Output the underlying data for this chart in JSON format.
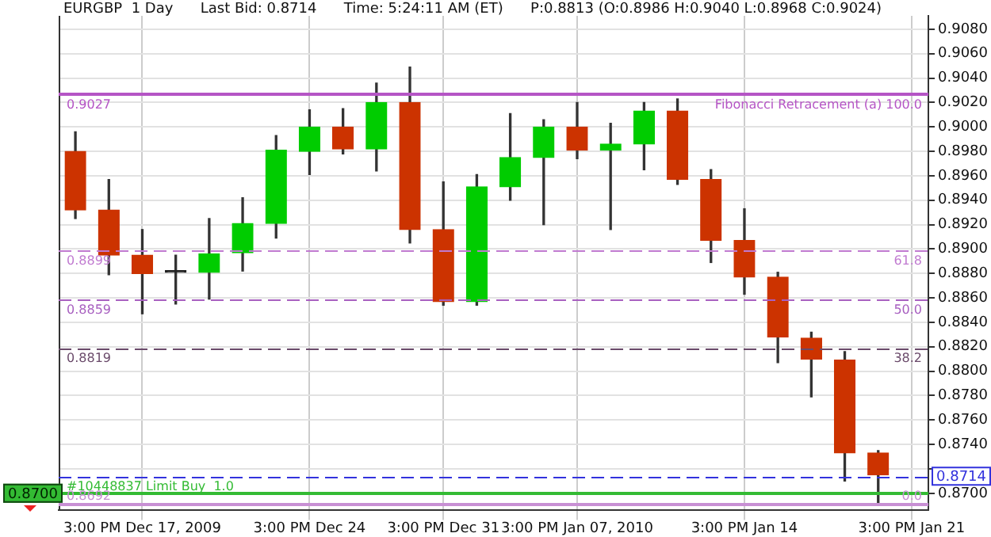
{
  "chart_data": {
    "type": "candlestick",
    "title": "EURGBP  1 Day      Last Bid: 0.8714      Time: 5:24:11 AM (ET)      P:0.8813 (O:0.8986 H:0.9040 L:0.8968 C:0.9024)",
    "categories": [
      null,
      null,
      "3:00 PM Dec 17, 2009",
      null,
      null,
      null,
      null,
      "3:00 PM Dec 24",
      null,
      null,
      null,
      "3:00 PM Dec 31",
      null,
      null,
      null,
      "3:00 PM Jan 07, 2010",
      null,
      null,
      null,
      null,
      "3:00 PM Jan 14",
      null,
      null,
      null,
      null,
      "3:00 PM Jan 21"
    ],
    "ohlc": [
      [
        0.898,
        0.8996,
        0.8925,
        0.8932
      ],
      [
        0.8932,
        0.8957,
        0.8879,
        0.8895
      ],
      [
        0.8895,
        0.8916,
        0.8847,
        0.888
      ],
      [
        0.8881,
        0.8895,
        0.8855,
        0.8881
      ],
      [
        0.8881,
        0.8925,
        0.8859,
        0.8896
      ],
      [
        0.8897,
        0.8942,
        0.8882,
        0.8921
      ],
      [
        0.8921,
        0.8993,
        0.8909,
        0.8981
      ],
      [
        0.898,
        0.9014,
        0.8961,
        0.9
      ],
      [
        0.9,
        0.9015,
        0.8978,
        0.8982
      ],
      [
        0.8982,
        0.9036,
        0.8964,
        0.902
      ],
      [
        0.902,
        0.9049,
        0.8905,
        0.8916
      ],
      [
        0.8916,
        0.8955,
        0.8854,
        0.8857
      ],
      [
        0.8857,
        0.8961,
        0.8854,
        0.8951
      ],
      [
        0.8951,
        0.9011,
        0.894,
        0.8975
      ],
      [
        0.8975,
        0.9006,
        0.892,
        0.9
      ],
      [
        0.9,
        0.902,
        0.8974,
        0.8981
      ],
      [
        0.8981,
        0.9003,
        0.8916,
        0.8986
      ],
      [
        0.8986,
        0.902,
        0.8965,
        0.9013
      ],
      [
        0.9013,
        0.9023,
        0.8953,
        0.8957
      ],
      [
        0.8957,
        0.8965,
        0.8889,
        0.8907
      ],
      [
        0.8907,
        0.8933,
        0.8863,
        0.8877
      ],
      [
        0.8877,
        0.8881,
        0.8807,
        0.8828
      ],
      [
        0.8827,
        0.8832,
        0.8779,
        0.881
      ],
      [
        0.8809,
        0.8816,
        0.871,
        0.8733
      ],
      [
        0.8733,
        0.8735,
        0.8692,
        0.8715
      ],
      null
    ],
    "colors": [
      "#cc3300",
      "#cc3300",
      "#cc3300",
      "#222222",
      "#00cc00",
      "#00cc00",
      "#00cc00",
      "#00cc00",
      "#cc3300",
      "#00cc00",
      "#cc3300",
      "#cc3300",
      "#00cc00",
      "#00cc00",
      "#00cc00",
      "#cc3300",
      "#00cc00",
      "#00cc00",
      "#cc3300",
      "#cc3300",
      "#cc3300",
      "#cc3300",
      "#cc3300",
      "#cc3300",
      "#cc3300",
      null
    ],
    "ylim": [
      0.8686,
      0.9091
    ],
    "yticks": [
      {
        "value": 0.87,
        "label": "0.8700"
      },
      {
        "value": 0.872,
        "label": null
      },
      {
        "value": 0.874,
        "label": "0.8740"
      },
      {
        "value": 0.876,
        "label": "0.8760"
      },
      {
        "value": 0.878,
        "label": "0.8780"
      },
      {
        "value": 0.88,
        "label": "0.8800"
      },
      {
        "value": 0.882,
        "label": "0.8820"
      },
      {
        "value": 0.884,
        "label": "0.8840"
      },
      {
        "value": 0.886,
        "label": "0.8860"
      },
      {
        "value": 0.888,
        "label": "0.8880"
      },
      {
        "value": 0.89,
        "label": "0.8900"
      },
      {
        "value": 0.892,
        "label": "0.8920"
      },
      {
        "value": 0.894,
        "label": "0.8940"
      },
      {
        "value": 0.896,
        "label": "0.8960"
      },
      {
        "value": 0.898,
        "label": "0.8980"
      },
      {
        "value": 0.9,
        "label": "0.9000"
      },
      {
        "value": 0.902,
        "label": "0.9020"
      },
      {
        "value": 0.904,
        "label": "0.9040"
      },
      {
        "value": 0.906,
        "label": "0.9060"
      },
      {
        "value": 0.908,
        "label": "0.9080"
      }
    ],
    "grid": true,
    "ref_lines": [
      {
        "axis": "y",
        "value": 0.9027,
        "color": "#b555c5",
        "line_style": "solid",
        "label": "0.9027"
      },
      {
        "axis": "y",
        "value": 0.8899,
        "color": "#c07ad0",
        "line_style": "dashed",
        "label": "0.8899"
      },
      {
        "axis": "y",
        "value": 0.8859,
        "color": "#a860c0",
        "line_style": "dashed",
        "label": "0.8859"
      },
      {
        "axis": "y",
        "value": 0.8819,
        "color": "#6a4a6a",
        "line_style": "dashed",
        "label": "0.8819"
      },
      {
        "axis": "y",
        "value": 0.8692,
        "color": "#c890d4",
        "line_style": "solid",
        "label": "0.8692"
      },
      {
        "axis": "y",
        "value": 0.87,
        "color": "#33bb33",
        "line_style": "solid",
        "label": "#10448837 Limit Buy  1.0"
      },
      {
        "axis": "y",
        "value": 0.8714,
        "color": "#3333dd",
        "line_style": "dashed"
      }
    ],
    "annotations": [
      "Fibonacci Retracement (a) 100.0",
      "61.8",
      "50.0",
      "38.2",
      "0.0",
      "0.8700",
      "0.8714"
    ],
    "legend": false
  }
}
